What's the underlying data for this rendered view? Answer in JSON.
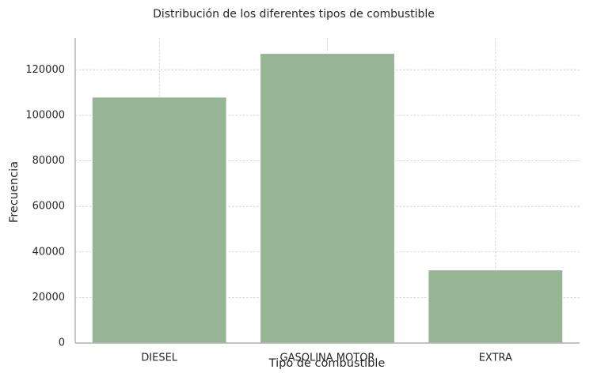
{
  "chart_data": {
    "type": "bar",
    "title": "Distribución de los diferentes tipos de combustible",
    "xlabel": "Tipo de combustible",
    "ylabel": "Frecuencia",
    "categories": [
      "DIESEL",
      "GASOLINA MOTOR",
      "EXTRA"
    ],
    "values": [
      108000,
      127200,
      32100
    ],
    "ylim": [
      0,
      134000
    ],
    "yticks": [
      0,
      20000,
      40000,
      60000,
      80000,
      100000,
      120000
    ],
    "ytick_labels": [
      "0",
      "20000",
      "40000",
      "60000",
      "80000",
      "100000",
      "120000"
    ],
    "bar_color": "#97b595",
    "grid": true,
    "legend": "none"
  }
}
